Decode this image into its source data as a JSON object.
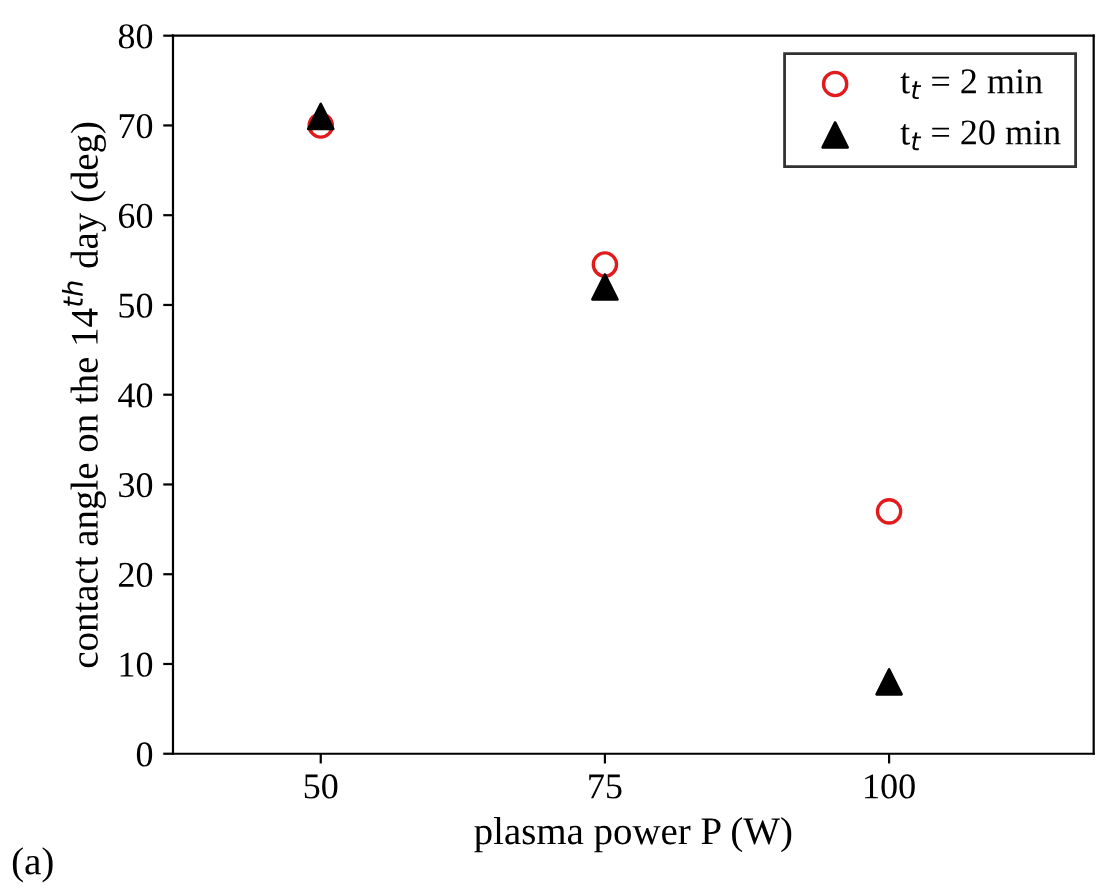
{
  "chart_data": {
    "type": "scatter",
    "xlabel": "plasma power P (W)",
    "ylabel": "contact angle on the 14$^{th}$ day (deg)",
    "x": [
      50,
      75,
      100
    ],
    "series": [
      {
        "name": "t$_{t}$ = 2 min",
        "color": "#e31a1c",
        "marker": "circle",
        "values": [
          70,
          54.5,
          27
        ]
      },
      {
        "name": "t$_{t}$ = 20 min",
        "color": "#000000",
        "marker": "triangle",
        "values": [
          71,
          52,
          8
        ]
      }
    ],
    "xlim": [
      37,
      118
    ],
    "xticks": [
      50,
      75,
      100
    ],
    "ylim": [
      0,
      80
    ],
    "yticks": [
      0,
      10,
      20,
      30,
      40,
      50,
      60,
      70,
      80
    ],
    "grid": false,
    "legend": "top right",
    "annotations": [
      "(a)"
    ]
  }
}
